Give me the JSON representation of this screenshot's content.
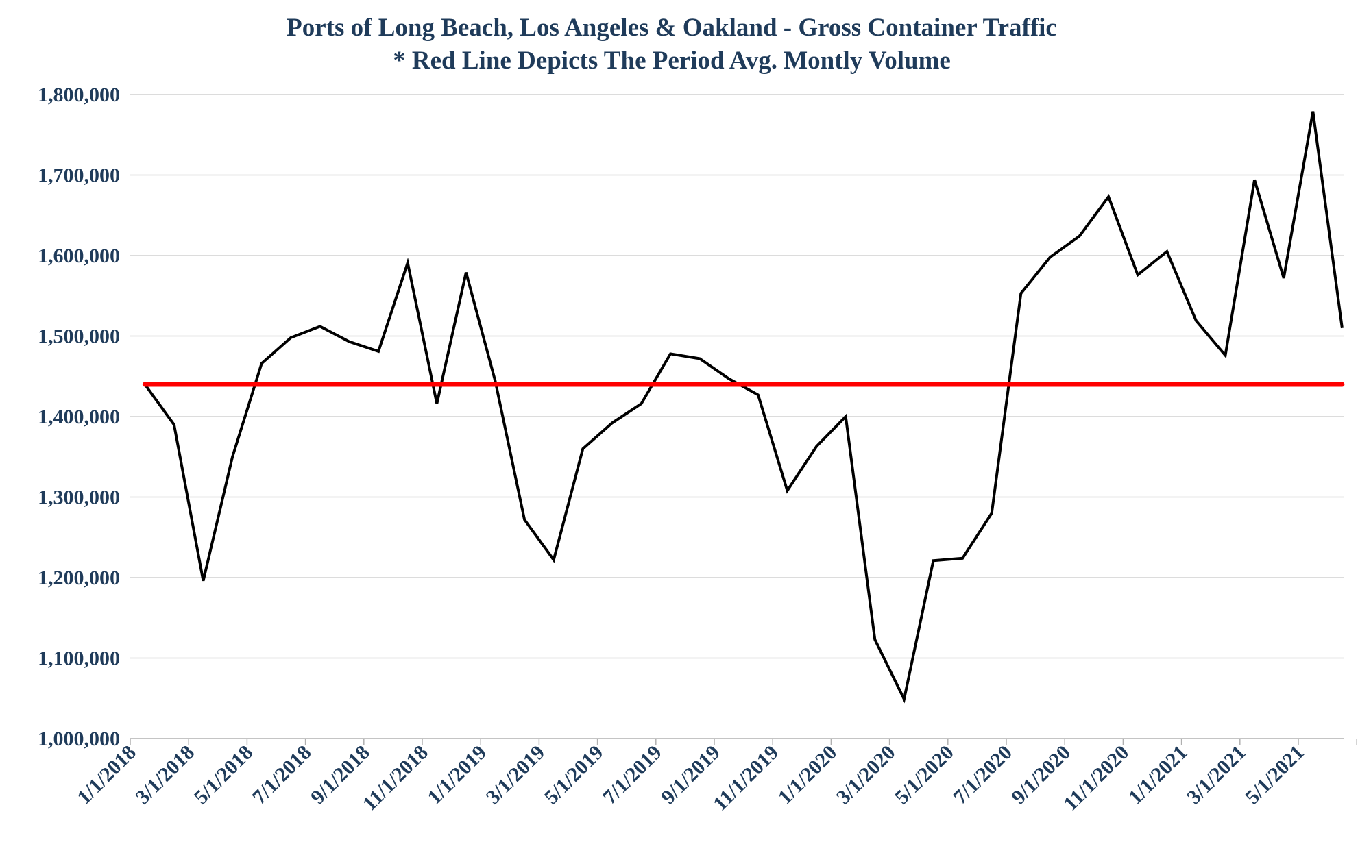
{
  "chart_data": {
    "type": "line",
    "title": "Ports of Long Beach, Los Angeles & Oakland - Gross Container Traffic",
    "subtitle": "* Red Line Depicts The Period Avg. Montly Volume",
    "xlabel": "",
    "ylabel": "",
    "ylim": [
      1000000,
      1800000
    ],
    "yticks": [
      "1,000,000",
      "1,100,000",
      "1,200,000",
      "1,300,000",
      "1,400,000",
      "1,500,000",
      "1,600,000",
      "1,700,000",
      "1,800,000"
    ],
    "xticks": [
      "1/1/2018",
      "3/1/2018",
      "5/1/2018",
      "7/1/2018",
      "9/1/2018",
      "11/1/2018",
      "1/1/2019",
      "3/1/2019",
      "5/1/2019",
      "7/1/2019",
      "9/1/2019",
      "11/1/2019",
      "1/1/2020",
      "3/1/2020",
      "5/1/2020",
      "7/1/2020",
      "9/1/2020",
      "11/1/2020",
      "1/1/2021",
      "3/1/2021",
      "5/1/2021"
    ],
    "grid": true,
    "legend": "none",
    "series": [
      {
        "color": "#000000",
        "x": [
          "1/1/2018",
          "2/1/2018",
          "3/1/2018",
          "4/1/2018",
          "5/1/2018",
          "6/1/2018",
          "7/1/2018",
          "8/1/2018",
          "9/1/2018",
          "10/1/2018",
          "11/1/2018",
          "12/1/2018",
          "1/1/2019",
          "2/1/2019",
          "3/1/2019",
          "4/1/2019",
          "5/1/2019",
          "6/1/2019",
          "7/1/2019",
          "8/1/2019",
          "9/1/2019",
          "10/1/2019",
          "11/1/2019",
          "12/1/2019",
          "1/1/2020",
          "2/1/2020",
          "3/1/2020",
          "4/1/2020",
          "5/1/2020",
          "6/1/2020",
          "7/1/2020",
          "8/1/2020",
          "9/1/2020",
          "10/1/2020",
          "11/1/2020",
          "12/1/2020",
          "1/1/2021",
          "2/1/2021",
          "3/1/2021",
          "4/1/2021",
          "5/1/2021",
          "6/1/2021"
        ],
        "values": [
          1440000,
          1390000,
          1196000,
          1350000,
          1466000,
          1498000,
          1512000,
          1493000,
          1481000,
          1591000,
          1416000,
          1579000,
          1444000,
          1272000,
          1222000,
          1360000,
          1392000,
          1416000,
          1478000,
          1472000,
          1447000,
          1427000,
          1308000,
          1363000,
          1400000,
          1123000,
          1049000,
          1221000,
          1224000,
          1280000,
          1553000,
          1598000,
          1624000,
          1673000,
          1576000,
          1605000,
          1519000,
          1476000,
          1694000,
          1572000,
          1779000,
          1510000
        ]
      },
      {
        "color": "#ff0000",
        "x": [
          "1/1/2018",
          "6/1/2021"
        ],
        "values": [
          1440000,
          1440000
        ]
      }
    ]
  }
}
